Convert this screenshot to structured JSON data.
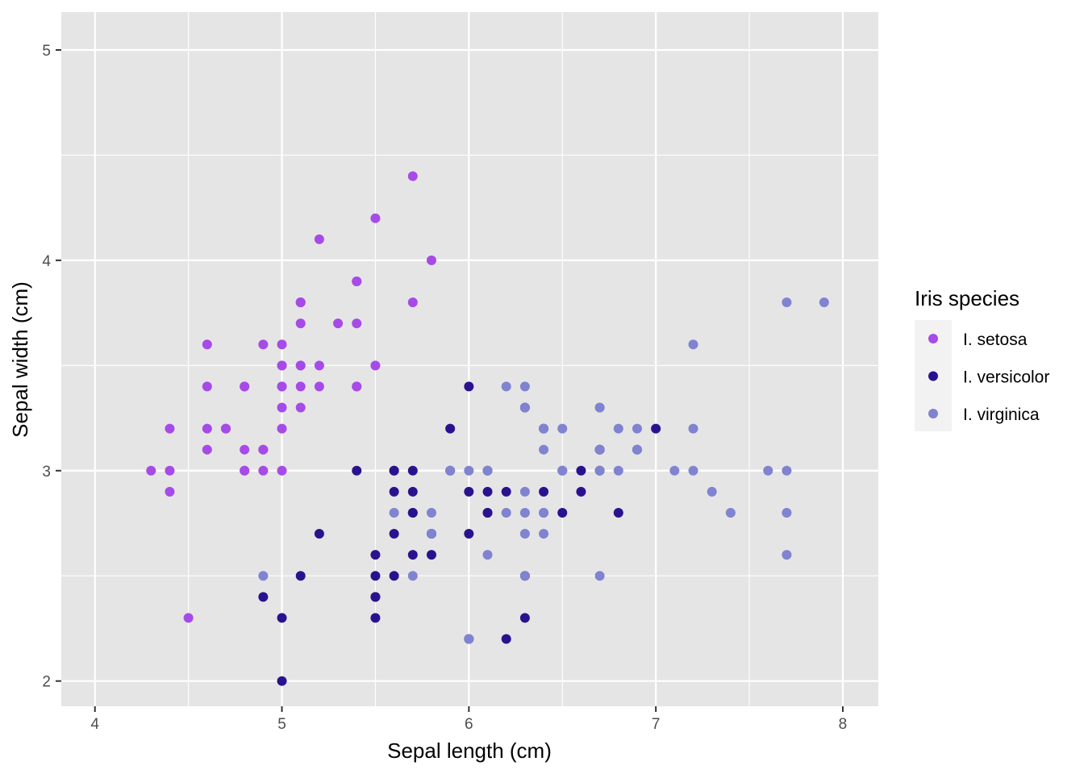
{
  "chart_data": {
    "type": "scatter",
    "title": "",
    "xlabel": "Sepal length (cm)",
    "ylabel": "Sepal width (cm)",
    "xlim": [
      3.82,
      8.19
    ],
    "ylim": [
      1.88,
      5.18
    ],
    "xticks": [
      4,
      5,
      6,
      7,
      8
    ],
    "yticks": [
      2,
      3,
      4,
      5
    ],
    "grid": true,
    "panel_background": "#e5e5e5",
    "grid_color": "#ffffff",
    "legend": {
      "title": "Iris species",
      "position": "right"
    },
    "series": [
      {
        "name": "I. setosa",
        "color": "#a64ae8",
        "points": [
          [
            5.1,
            3.5
          ],
          [
            4.9,
            3.0
          ],
          [
            4.7,
            3.2
          ],
          [
            4.6,
            3.1
          ],
          [
            5.0,
            3.6
          ],
          [
            5.4,
            3.9
          ],
          [
            4.6,
            3.4
          ],
          [
            5.0,
            3.4
          ],
          [
            4.4,
            2.9
          ],
          [
            4.9,
            3.1
          ],
          [
            5.4,
            3.7
          ],
          [
            4.8,
            3.4
          ],
          [
            4.8,
            3.0
          ],
          [
            4.3,
            3.0
          ],
          [
            5.8,
            4.0
          ],
          [
            5.7,
            4.4
          ],
          [
            5.4,
            3.9
          ],
          [
            5.1,
            3.5
          ],
          [
            5.7,
            3.8
          ],
          [
            5.1,
            3.8
          ],
          [
            5.4,
            3.4
          ],
          [
            5.1,
            3.7
          ],
          [
            4.6,
            3.6
          ],
          [
            5.1,
            3.3
          ],
          [
            4.8,
            3.4
          ],
          [
            5.0,
            3.0
          ],
          [
            5.0,
            3.4
          ],
          [
            5.2,
            3.5
          ],
          [
            5.2,
            3.4
          ],
          [
            4.7,
            3.2
          ],
          [
            4.8,
            3.1
          ],
          [
            5.4,
            3.4
          ],
          [
            5.2,
            4.1
          ],
          [
            5.5,
            4.2
          ],
          [
            4.9,
            3.1
          ],
          [
            5.0,
            3.2
          ],
          [
            5.5,
            3.5
          ],
          [
            4.9,
            3.6
          ],
          [
            4.4,
            3.0
          ],
          [
            5.1,
            3.4
          ],
          [
            5.0,
            3.5
          ],
          [
            4.5,
            2.3
          ],
          [
            4.4,
            3.2
          ],
          [
            5.0,
            3.5
          ],
          [
            5.1,
            3.8
          ],
          [
            4.8,
            3.0
          ],
          [
            5.1,
            3.8
          ],
          [
            4.6,
            3.2
          ],
          [
            5.3,
            3.7
          ],
          [
            5.0,
            3.3
          ]
        ]
      },
      {
        "name": "I. versicolor",
        "color": "#2a128f",
        "points": [
          [
            7.0,
            3.2
          ],
          [
            6.4,
            3.2
          ],
          [
            6.9,
            3.1
          ],
          [
            5.5,
            2.3
          ],
          [
            6.5,
            2.8
          ],
          [
            5.7,
            2.8
          ],
          [
            6.3,
            3.3
          ],
          [
            4.9,
            2.4
          ],
          [
            6.6,
            2.9
          ],
          [
            5.2,
            2.7
          ],
          [
            5.0,
            2.0
          ],
          [
            5.9,
            3.0
          ],
          [
            6.0,
            2.2
          ],
          [
            6.1,
            2.9
          ],
          [
            5.6,
            2.9
          ],
          [
            6.7,
            3.1
          ],
          [
            5.6,
            3.0
          ],
          [
            5.8,
            2.7
          ],
          [
            6.2,
            2.2
          ],
          [
            5.6,
            2.5
          ],
          [
            5.9,
            3.2
          ],
          [
            6.1,
            2.8
          ],
          [
            6.3,
            2.5
          ],
          [
            6.1,
            2.8
          ],
          [
            6.4,
            2.9
          ],
          [
            6.6,
            3.0
          ],
          [
            6.8,
            2.8
          ],
          [
            6.7,
            3.0
          ],
          [
            6.0,
            2.9
          ],
          [
            5.7,
            2.6
          ],
          [
            5.5,
            2.4
          ],
          [
            5.5,
            2.4
          ],
          [
            5.8,
            2.7
          ],
          [
            6.0,
            2.7
          ],
          [
            5.4,
            3.0
          ],
          [
            6.0,
            3.4
          ],
          [
            6.7,
            3.1
          ],
          [
            6.3,
            2.3
          ],
          [
            5.6,
            3.0
          ],
          [
            5.5,
            2.5
          ],
          [
            5.5,
            2.6
          ],
          [
            6.1,
            3.0
          ],
          [
            5.8,
            2.6
          ],
          [
            5.0,
            2.3
          ],
          [
            5.6,
            2.7
          ],
          [
            5.7,
            3.0
          ],
          [
            5.7,
            2.9
          ],
          [
            6.2,
            2.9
          ],
          [
            5.1,
            2.5
          ],
          [
            5.7,
            2.8
          ]
        ]
      },
      {
        "name": "I. virginica",
        "color": "#7f83d0",
        "points": [
          [
            6.3,
            3.3
          ],
          [
            5.8,
            2.7
          ],
          [
            7.1,
            3.0
          ],
          [
            6.3,
            2.9
          ],
          [
            6.5,
            3.0
          ],
          [
            7.6,
            3.0
          ],
          [
            4.9,
            2.5
          ],
          [
            7.3,
            2.9
          ],
          [
            6.7,
            2.5
          ],
          [
            7.2,
            3.6
          ],
          [
            6.5,
            3.2
          ],
          [
            6.4,
            2.7
          ],
          [
            6.8,
            3.0
          ],
          [
            5.7,
            2.5
          ],
          [
            5.8,
            2.8
          ],
          [
            6.4,
            3.2
          ],
          [
            6.5,
            3.0
          ],
          [
            7.7,
            3.8
          ],
          [
            7.7,
            2.6
          ],
          [
            6.0,
            2.2
          ],
          [
            6.9,
            3.2
          ],
          [
            5.6,
            2.8
          ],
          [
            7.7,
            2.8
          ],
          [
            6.3,
            2.7
          ],
          [
            6.7,
            3.3
          ],
          [
            7.2,
            3.2
          ],
          [
            6.2,
            2.8
          ],
          [
            6.1,
            3.0
          ],
          [
            6.4,
            2.8
          ],
          [
            7.2,
            3.0
          ],
          [
            7.4,
            2.8
          ],
          [
            7.9,
            3.8
          ],
          [
            6.4,
            2.8
          ],
          [
            6.3,
            2.8
          ],
          [
            6.1,
            2.6
          ],
          [
            7.7,
            3.0
          ],
          [
            6.3,
            3.4
          ],
          [
            6.4,
            3.1
          ],
          [
            6.0,
            3.0
          ],
          [
            6.9,
            3.1
          ],
          [
            6.7,
            3.1
          ],
          [
            6.9,
            3.1
          ],
          [
            5.8,
            2.7
          ],
          [
            6.8,
            3.2
          ],
          [
            6.7,
            3.3
          ],
          [
            6.7,
            3.0
          ],
          [
            6.3,
            2.5
          ],
          [
            6.5,
            3.0
          ],
          [
            6.2,
            3.4
          ],
          [
            5.9,
            3.0
          ]
        ]
      }
    ]
  }
}
